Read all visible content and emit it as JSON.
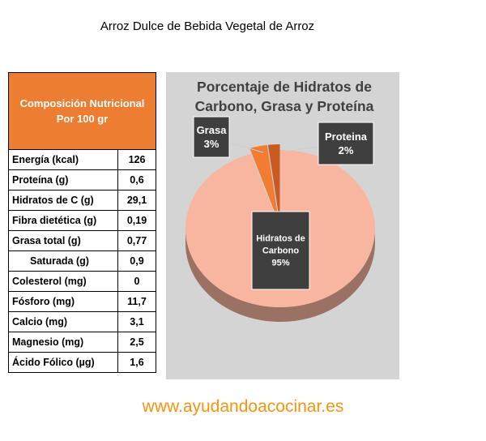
{
  "page_title": "Arroz Dulce de Bebida Vegetal de Arroz",
  "table": {
    "header_line1": "Composición  Nutricional",
    "header_line2": "Por 100 gr",
    "rows": [
      {
        "label": "Energía (kcal)",
        "value": "126"
      },
      {
        "label": "Proteína (g)",
        "value": "0,6"
      },
      {
        "label": "Hidratos de C (g)",
        "value": "29,1"
      },
      {
        "label": "Fibra dietética (g)",
        "value": "0,19"
      },
      {
        "label": "Grasa total (g)",
        "value": "0,77"
      },
      {
        "label": "Saturada (g)",
        "value": "0,9"
      },
      {
        "label": "Colesterol (mg)",
        "value": "0"
      },
      {
        "label": "Fósforo (mg)",
        "value": "11,7"
      },
      {
        "label": "Calcio (mg)",
        "value": "3,1"
      },
      {
        "label": "Magnesio (mg)",
        "value": "2,5"
      },
      {
        "label": "Ácido Fólico (µg)",
        "value": "1,6"
      }
    ]
  },
  "chart_data": {
    "type": "pie",
    "title_line1": "Porcentaje de Hidratos de",
    "title_line2": "Carbono, Grasa y Proteína",
    "slices": [
      {
        "label": "Hidratos de Carbono",
        "label_line1": "Hidratos de",
        "label_line2": "Carbono",
        "value": 95,
        "value_label": "95%",
        "color": "#F8B6A0"
      },
      {
        "label": "Grasa",
        "value": 3,
        "value_label": "3%",
        "color": "#F07D32"
      },
      {
        "label": "Proteina",
        "value": 2,
        "value_label": "2%",
        "color": "#C85A22"
      }
    ]
  },
  "watermark": "www.ayudandoacocinar.es"
}
